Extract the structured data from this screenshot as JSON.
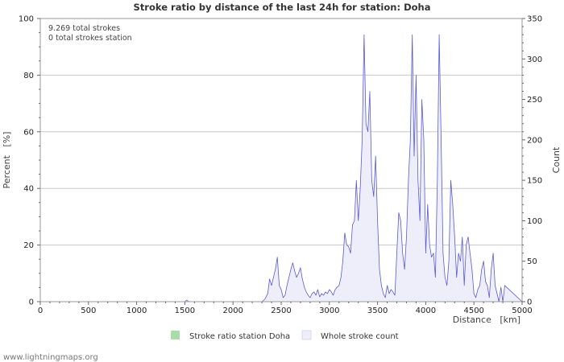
{
  "chart_data": {
    "type": "area",
    "title": "Stroke ratio by distance of the last 24h for station: Doha",
    "xlabel": "Distance   [km]",
    "ylabel_left": "Percent   [%]",
    "ylabel_right": "Count",
    "xlim": [
      0,
      5000
    ],
    "ylim_left": [
      0,
      100
    ],
    "ylim_right": [
      0,
      350
    ],
    "x_ticks": [
      "0",
      "500",
      "1000",
      "1500",
      "2000",
      "2500",
      "3000",
      "3500",
      "4000",
      "4500",
      "5000"
    ],
    "y_left_ticks": [
      "0",
      "20",
      "40",
      "60",
      "80",
      "100"
    ],
    "y_right_ticks": [
      "0",
      "50",
      "100",
      "150",
      "200",
      "250",
      "300",
      "350"
    ],
    "info_lines": [
      "9.269 total strokes",
      "0 total strokes station"
    ],
    "legend": [
      {
        "label": "Stroke ratio station Doha",
        "color": "#a8dca8"
      },
      {
        "label": "Whole stroke count",
        "color": "#eeeefa"
      }
    ],
    "colors": {
      "line": "#5a5ad6",
      "fill": "#eeeefa",
      "grid": "#c8c8c8"
    },
    "series": [
      {
        "name": "Whole stroke count",
        "x": [
          0,
          1000,
          1500,
          1520,
          1540,
          2000,
          2200,
          2300,
          2330,
          2360,
          2380,
          2400,
          2420,
          2440,
          2460,
          2480,
          2500,
          2520,
          2540,
          2560,
          2600,
          2620,
          2640,
          2660,
          2680,
          2700,
          2720,
          2740,
          2760,
          2780,
          2800,
          2820,
          2840,
          2860,
          2880,
          2900,
          2920,
          2940,
          2960,
          2980,
          3000,
          3020,
          3040,
          3060,
          3080,
          3100,
          3120,
          3140,
          3160,
          3180,
          3200,
          3220,
          3240,
          3260,
          3280,
          3300,
          3320,
          3340,
          3360,
          3380,
          3400,
          3420,
          3440,
          3460,
          3480,
          3500,
          3520,
          3540,
          3560,
          3580,
          3600,
          3620,
          3640,
          3660,
          3680,
          3700,
          3720,
          3740,
          3760,
          3780,
          3800,
          3820,
          3840,
          3860,
          3880,
          3900,
          3920,
          3940,
          3960,
          3980,
          4000,
          4020,
          4040,
          4060,
          4080,
          4100,
          4120,
          4140,
          4160,
          4180,
          4200,
          4220,
          4240,
          4260,
          4280,
          4300,
          4320,
          4340,
          4360,
          4380,
          4400,
          4420,
          4440,
          4460,
          4480,
          4500,
          4520,
          4540,
          4560,
          4580,
          4600,
          4620,
          4640,
          4660,
          4680,
          4700,
          4720,
          4740,
          4760,
          4780,
          4800,
          4820,
          5000
        ],
        "y": [
          0,
          0,
          0,
          2,
          0,
          0,
          0,
          0,
          3,
          10,
          28,
          20,
          30,
          40,
          55,
          20,
          15,
          5,
          8,
          20,
          40,
          48,
          38,
          30,
          35,
          42,
          28,
          18,
          12,
          8,
          5,
          10,
          12,
          8,
          15,
          6,
          10,
          8,
          12,
          10,
          15,
          12,
          8,
          15,
          18,
          20,
          30,
          50,
          85,
          70,
          68,
          60,
          95,
          100,
          150,
          100,
          140,
          200,
          330,
          220,
          210,
          260,
          150,
          130,
          180,
          100,
          40,
          20,
          10,
          5,
          20,
          10,
          15,
          12,
          8,
          60,
          110,
          100,
          60,
          40,
          80,
          150,
          200,
          330,
          180,
          280,
          150,
          100,
          250,
          200,
          60,
          120,
          70,
          55,
          60,
          30,
          150,
          330,
          200,
          60,
          30,
          20,
          50,
          150,
          120,
          80,
          30,
          60,
          50,
          80,
          20,
          70,
          80,
          60,
          40,
          10,
          5,
          15,
          20,
          40,
          50,
          25,
          20,
          5,
          40,
          60,
          20,
          10,
          0,
          18,
          0,
          20,
          0
        ]
      }
    ]
  }
}
